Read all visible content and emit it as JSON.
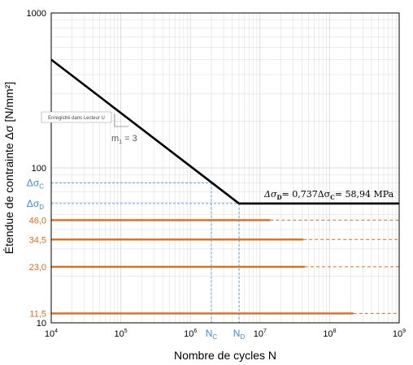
{
  "chart_data": {
    "type": "line",
    "xlabel": "Nombre de cycles N",
    "ylabel": "Étendue de contrainte Δσ [N/mm²]",
    "xscale": "log",
    "yscale": "log",
    "xlim": [
      10000,
      1000000000
    ],
    "ylim": [
      10,
      1000
    ],
    "x_ticks": [
      {
        "value": 10000,
        "mantissa": "10",
        "exp": "4"
      },
      {
        "value": 100000,
        "mantissa": "10",
        "exp": "5"
      },
      {
        "value": 1000000,
        "mantissa": "10",
        "exp": "6"
      },
      {
        "value": 10000000,
        "mantissa": "10",
        "exp": "7"
      },
      {
        "value": 100000000,
        "mantissa": "10",
        "exp": "8"
      },
      {
        "value": 1000000000,
        "mantissa": "10",
        "exp": "9"
      }
    ],
    "y_ticks_black": [
      {
        "value": 1000,
        "label": "1000"
      },
      {
        "value": 100,
        "label": "100"
      },
      {
        "value": 10,
        "label": "10"
      }
    ],
    "y_ticks_orange": [
      {
        "value": 46,
        "label": "46,0"
      },
      {
        "value": 34.5,
        "label": "34,5"
      },
      {
        "value": 23,
        "label": "23,0"
      },
      {
        "value": 11.5,
        "label": "11,5"
      }
    ],
    "y_ticks_blue": [
      {
        "value": 80,
        "base": "Δσ",
        "sub": "C"
      },
      {
        "value": 58.94,
        "base": "Δσ",
        "sub": "D"
      }
    ],
    "x_markers_blue": [
      {
        "value": 2000000,
        "base": "N",
        "sub": "C"
      },
      {
        "value": 5000000,
        "base": "N",
        "sub": "D"
      }
    ],
    "series": [
      {
        "color": "#000000",
        "points": [
          [
            10000,
            500
          ],
          [
            5000000,
            58.94
          ],
          [
            1000000000,
            58.94
          ]
        ]
      }
    ],
    "orange_lines": [
      {
        "y": 46,
        "solid_to": 14000000
      },
      {
        "y": 34.5,
        "solid_to": 42000000
      },
      {
        "y": 23,
        "solid_to": 44000000
      },
      {
        "y": 11.5,
        "solid_to": 220000000
      }
    ],
    "slope_label": {
      "var": "m",
      "sub": "1",
      "eq": " = 3"
    },
    "fatigue_annotation": {
      "text_a": "Δσ",
      "sub_a": "D",
      "text_b": "= 0,737Δσ",
      "sub_b": "C",
      "text_c": "= 58,94 MPa"
    },
    "stamp": "Enregistré dans Lecteur U",
    "colors": {
      "black": "#000000",
      "orange": "#e06a1e",
      "blue": "#3d8ad9",
      "grid": "#d9d9d9"
    },
    "grid": true
  }
}
